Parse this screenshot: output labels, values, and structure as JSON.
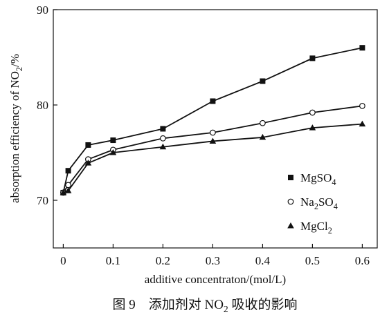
{
  "chart_data": {
    "type": "line",
    "x": [
      0,
      0.01,
      0.05,
      0.1,
      0.2,
      0.3,
      0.4,
      0.5,
      0.6
    ],
    "series": [
      {
        "name": "MgSO4",
        "label_parts": [
          {
            "t": "MgSO"
          },
          {
            "t": "4",
            "sub": true
          }
        ],
        "marker": "square",
        "y": [
          70.8,
          73.1,
          75.8,
          76.3,
          77.5,
          80.4,
          82.5,
          84.9,
          86.0
        ]
      },
      {
        "name": "Na2SO4",
        "label_parts": [
          {
            "t": "Na"
          },
          {
            "t": "2",
            "sub": true
          },
          {
            "t": "SO"
          },
          {
            "t": "4",
            "sub": true
          }
        ],
        "marker": "circle",
        "y": [
          70.8,
          71.6,
          74.3,
          75.3,
          76.5,
          77.1,
          78.1,
          79.2,
          79.9
        ]
      },
      {
        "name": "MgCl2",
        "label_parts": [
          {
            "t": "MgCl"
          },
          {
            "t": "2",
            "sub": true
          }
        ],
        "marker": "triangle",
        "y": [
          70.8,
          71.0,
          73.9,
          75.0,
          75.6,
          76.2,
          76.6,
          77.6,
          78.0
        ]
      }
    ],
    "xlim": [
      -0.02,
      0.63
    ],
    "ylim": [
      65,
      90
    ],
    "xticks": [
      0,
      0.1,
      0.2,
      0.3,
      0.4,
      0.5,
      0.6
    ],
    "xtick_labels": [
      "0",
      "0.1",
      "0.2",
      "0.3",
      "0.4",
      "0.5",
      "0.6"
    ],
    "yticks": [
      70,
      80,
      90
    ],
    "ytick_labels": [
      "70",
      "80",
      "90"
    ],
    "xlabel": "additive concentraton/(mol/L)",
    "ylabel_parts": [
      {
        "t": "absorption efficiency of NO"
      },
      {
        "t": "2",
        "sub": true
      },
      {
        "t": "/%"
      }
    ],
    "caption_parts": [
      {
        "t": "图 9　添加剂对 NO"
      },
      {
        "t": "2",
        "sub": true
      },
      {
        "t": " 吸收的影响"
      }
    ],
    "legend_position": "right",
    "grid": false
  }
}
